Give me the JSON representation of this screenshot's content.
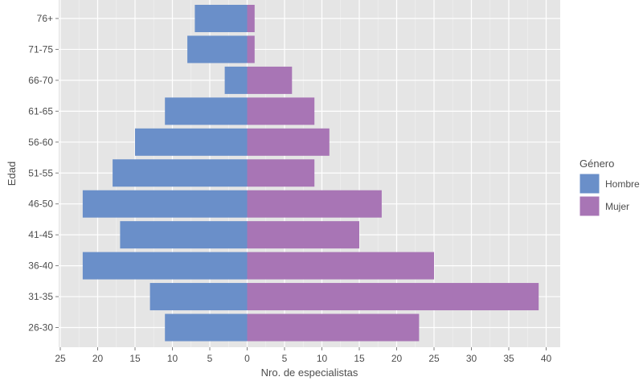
{
  "chart_data": {
    "type": "bar",
    "orientation": "horizontal-pyramid",
    "categories": [
      "26-30",
      "31-35",
      "36-40",
      "41-45",
      "46-50",
      "51-55",
      "56-60",
      "61-65",
      "66-70",
      "71-75",
      "76+"
    ],
    "series": [
      {
        "name": "Hombre",
        "color": "#6a8fc9",
        "side": "left",
        "values": [
          11,
          13,
          22,
          17,
          22,
          18,
          15,
          11,
          3,
          8,
          7
        ]
      },
      {
        "name": "Mujer",
        "color": "#a875b5",
        "side": "right",
        "values": [
          23,
          39,
          25,
          15,
          18,
          9,
          11,
          9,
          6,
          1,
          1
        ]
      }
    ],
    "xlabel": "Nro. de especialistas",
    "ylabel": "Edad",
    "xlim": [
      -25,
      42
    ],
    "xticks": [
      -25,
      -20,
      -15,
      -10,
      -5,
      0,
      5,
      10,
      15,
      20,
      25,
      30,
      35,
      40
    ],
    "xtick_labels": [
      "25",
      "20",
      "15",
      "10",
      "5",
      "0",
      "5",
      "10",
      "15",
      "20",
      "25",
      "30",
      "35",
      "40"
    ],
    "legend": {
      "title": "Género",
      "placement": "right"
    },
    "grid": true,
    "panel_background": "#e5e5e5"
  }
}
